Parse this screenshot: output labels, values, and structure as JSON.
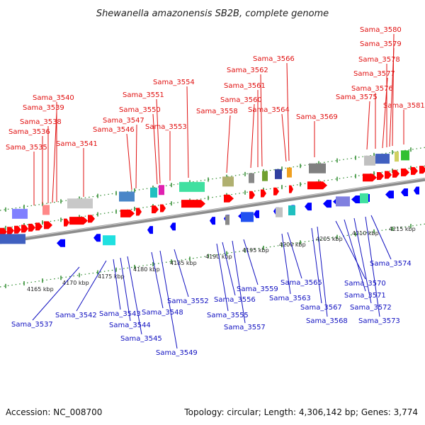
{
  "title": "Shewanella amazonensis SB2B, complete genome",
  "footer": {
    "accession": "Accession: NC_008700",
    "topology": "Topology: circular; Length: 4,306,142 bp; Genes: 3,774"
  },
  "colors": {
    "forward": "#ff0000",
    "reverse": "#0000ff",
    "backbone": "#8c8c8c",
    "tick": "#2e8b2e",
    "label_top": "#e01010",
    "label_bottom": "#1010c0"
  },
  "kbp_ticks": [
    "4165 kbp",
    "4170 kbp",
    "4175 kbp",
    "4180 kbp",
    "4185 kbp",
    "4190 kbp",
    "4195 kbp",
    "4200 kbp",
    "4205 kbp",
    "4210 kbp",
    "4215 kbp"
  ],
  "genes_top": [
    "Sama_3535",
    "Sama_3536",
    "Sama_3538",
    "Sama_3539",
    "Sama_3540",
    "Sama_3541",
    "Sama_3546",
    "Sama_3547",
    "Sama_3550",
    "Sama_3551",
    "Sama_3553",
    "Sama_3554",
    "Sama_3558",
    "Sama_3560",
    "Sama_3561",
    "Sama_3562",
    "Sama_3564",
    "Sama_3566",
    "Sama_3569",
    "Sama_3575",
    "Sama_3576",
    "Sama_3577",
    "Sama_3578",
    "Sama_3579",
    "Sama_3580",
    "Sama_3581"
  ],
  "genes_bottom": [
    "Sama_3537",
    "Sama_3542",
    "Sama_3543",
    "Sama_3544",
    "Sama_3545",
    "Sama_3548",
    "Sama_3549",
    "Sama_3552",
    "Sama_3555",
    "Sama_3556",
    "Sama_3557",
    "Sama_3559",
    "Sama_3563",
    "Sama_3565",
    "Sama_3567",
    "Sama_3568",
    "Sama_3570",
    "Sama_3571",
    "Sama_3572",
    "Sama_3573",
    "Sama_3574"
  ]
}
